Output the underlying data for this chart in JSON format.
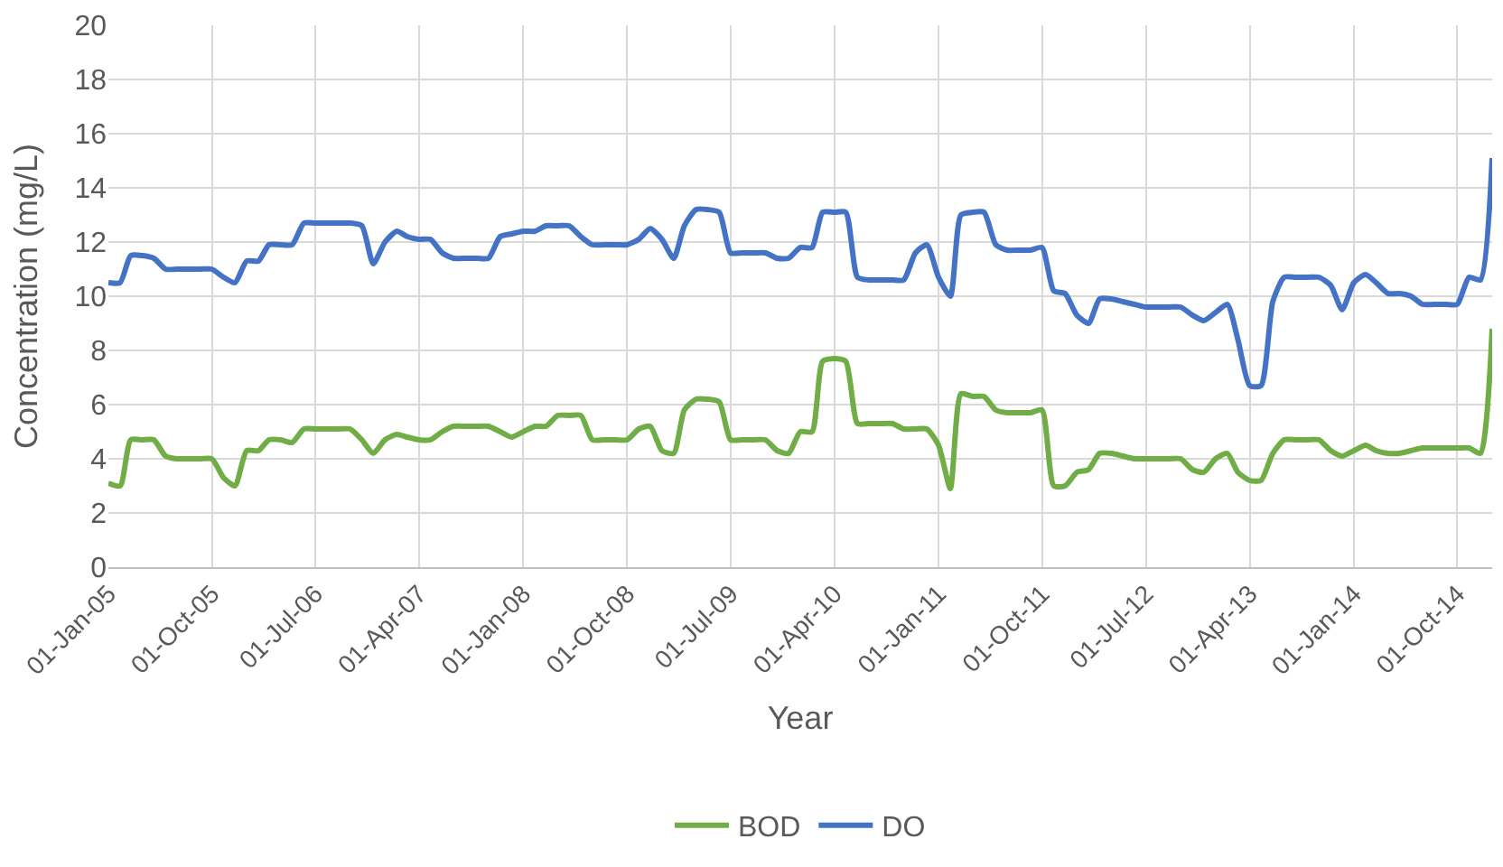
{
  "chart_data": {
    "type": "line",
    "xlabel": "Year",
    "ylabel": "Concentration (mg/L)",
    "x": [
      "2005-01",
      "2005-02",
      "2005-03",
      "2005-04",
      "2005-05",
      "2005-06",
      "2005-07",
      "2005-08",
      "2005-09",
      "2005-10",
      "2005-11",
      "2005-12",
      "2006-01",
      "2006-02",
      "2006-03",
      "2006-04",
      "2006-05",
      "2006-06",
      "2006-07",
      "2006-08",
      "2006-09",
      "2006-10",
      "2006-11",
      "2006-12",
      "2007-01",
      "2007-02",
      "2007-03",
      "2007-04",
      "2007-05",
      "2007-06",
      "2007-07",
      "2007-08",
      "2007-09",
      "2007-10",
      "2007-11",
      "2007-12",
      "2008-01",
      "2008-02",
      "2008-03",
      "2008-04",
      "2008-05",
      "2008-06",
      "2008-07",
      "2008-08",
      "2008-09",
      "2008-10",
      "2008-11",
      "2008-12",
      "2009-01",
      "2009-02",
      "2009-03",
      "2009-04",
      "2009-05",
      "2009-06",
      "2009-07",
      "2009-08",
      "2009-09",
      "2009-10",
      "2009-11",
      "2009-12",
      "2010-01",
      "2010-02",
      "2010-03",
      "2010-04",
      "2010-05",
      "2010-06",
      "2010-07",
      "2010-08",
      "2010-09",
      "2010-10",
      "2010-11",
      "2010-12",
      "2011-01",
      "2011-02",
      "2011-03",
      "2011-04",
      "2011-05",
      "2011-06",
      "2011-07",
      "2011-08",
      "2011-09",
      "2011-10",
      "2011-11",
      "2011-12",
      "2012-01",
      "2012-02",
      "2012-03",
      "2012-04",
      "2012-05",
      "2012-06",
      "2012-07",
      "2012-08",
      "2012-09",
      "2012-10",
      "2012-11",
      "2012-12",
      "2013-01",
      "2013-02",
      "2013-03",
      "2013-04",
      "2013-05",
      "2013-06",
      "2013-07",
      "2013-08",
      "2013-09",
      "2013-10",
      "2013-11",
      "2013-12",
      "2014-01",
      "2014-02",
      "2014-03",
      "2014-04",
      "2014-05",
      "2014-06",
      "2014-07",
      "2014-08",
      "2014-09",
      "2014-10",
      "2014-11",
      "2014-12",
      "2015-01"
    ],
    "series": [
      {
        "name": "BOD",
        "color": "#70ad47",
        "values": [
          3.1,
          3.0,
          4.7,
          4.7,
          4.7,
          4.1,
          4.0,
          4.0,
          4.0,
          4.0,
          3.3,
          3.0,
          4.3,
          4.3,
          4.7,
          4.7,
          4.6,
          5.1,
          5.1,
          5.1,
          5.1,
          5.1,
          4.7,
          4.2,
          4.7,
          4.9,
          4.8,
          4.7,
          4.7,
          5.0,
          5.2,
          5.2,
          5.2,
          5.2,
          5.0,
          4.8,
          5.0,
          5.2,
          5.2,
          5.6,
          5.6,
          5.6,
          4.7,
          4.7,
          4.7,
          4.7,
          5.1,
          5.2,
          4.3,
          4.2,
          5.8,
          6.2,
          6.2,
          6.1,
          4.7,
          4.7,
          4.7,
          4.7,
          4.3,
          4.2,
          5.0,
          5.0,
          7.6,
          7.7,
          7.6,
          5.3,
          5.3,
          5.3,
          5.3,
          5.1,
          5.1,
          5.1,
          4.5,
          2.9,
          6.4,
          6.3,
          6.3,
          5.8,
          5.7,
          5.7,
          5.7,
          5.8,
          3.0,
          3.0,
          3.5,
          3.6,
          4.2,
          4.2,
          4.1,
          4.0,
          4.0,
          4.0,
          4.0,
          4.0,
          3.6,
          3.5,
          4.0,
          4.2,
          3.5,
          3.2,
          3.2,
          4.2,
          4.7,
          4.7,
          4.7,
          4.7,
          4.3,
          4.1,
          4.3,
          4.5,
          4.3,
          4.2,
          4.2,
          4.3,
          4.4,
          4.4,
          4.4,
          4.4,
          4.4,
          4.2,
          8.8
        ]
      },
      {
        "name": "DO",
        "color": "#4472c4",
        "values": [
          10.5,
          10.5,
          11.5,
          11.5,
          11.4,
          11.0,
          11.0,
          11.0,
          11.0,
          11.0,
          10.7,
          10.5,
          11.3,
          11.3,
          11.9,
          11.9,
          11.9,
          12.7,
          12.7,
          12.7,
          12.7,
          12.7,
          12.6,
          11.2,
          12.0,
          12.4,
          12.2,
          12.1,
          12.1,
          11.6,
          11.4,
          11.4,
          11.4,
          11.4,
          12.2,
          12.3,
          12.4,
          12.4,
          12.6,
          12.6,
          12.6,
          12.2,
          11.9,
          11.9,
          11.9,
          11.9,
          12.1,
          12.5,
          12.1,
          11.4,
          12.6,
          13.2,
          13.2,
          13.1,
          11.6,
          11.6,
          11.6,
          11.6,
          11.4,
          11.4,
          11.8,
          11.8,
          13.1,
          13.1,
          13.1,
          10.7,
          10.6,
          10.6,
          10.6,
          10.6,
          11.6,
          11.9,
          10.7,
          10.0,
          13.0,
          13.1,
          13.1,
          11.9,
          11.7,
          11.7,
          11.7,
          11.8,
          10.2,
          10.1,
          9.3,
          9.0,
          9.9,
          9.9,
          9.8,
          9.7,
          9.6,
          9.6,
          9.6,
          9.6,
          9.3,
          9.1,
          9.4,
          9.7,
          8.4,
          6.7,
          6.7,
          9.8,
          10.7,
          10.7,
          10.7,
          10.7,
          10.4,
          9.5,
          10.5,
          10.8,
          10.5,
          10.1,
          10.1,
          10.0,
          9.7,
          9.7,
          9.7,
          9.7,
          10.7,
          10.6,
          15.1
        ]
      }
    ],
    "xlim": [
      "2005-01-01",
      "2015-01-01"
    ],
    "xticks": [
      {
        "value": "2005-01-01",
        "label": "01-Jan-05"
      },
      {
        "value": "2005-10-01",
        "label": "01-Oct-05"
      },
      {
        "value": "2006-07-01",
        "label": "01-Jul-06"
      },
      {
        "value": "2007-04-01",
        "label": "01-Apr-07"
      },
      {
        "value": "2008-01-01",
        "label": "01-Jan-08"
      },
      {
        "value": "2008-10-01",
        "label": "01-Oct-08"
      },
      {
        "value": "2009-07-01",
        "label": "01-Jul-09"
      },
      {
        "value": "2010-04-01",
        "label": "01-Apr-10"
      },
      {
        "value": "2011-01-01",
        "label": "01-Jan-11"
      },
      {
        "value": "2011-10-01",
        "label": "01-Oct-11"
      },
      {
        "value": "2012-07-01",
        "label": "01-Jul-12"
      },
      {
        "value": "2013-04-01",
        "label": "01-Apr-13"
      },
      {
        "value": "2014-01-01",
        "label": "01-Jan-14"
      },
      {
        "value": "2014-10-01",
        "label": "01-Oct-14"
      }
    ],
    "ylim": [
      0,
      20
    ],
    "yticks": [
      0,
      2,
      4,
      6,
      8,
      10,
      12,
      14,
      16,
      18,
      20
    ],
    "grid": true,
    "legend": "bottom",
    "marker": "none",
    "line_style": "solid"
  }
}
